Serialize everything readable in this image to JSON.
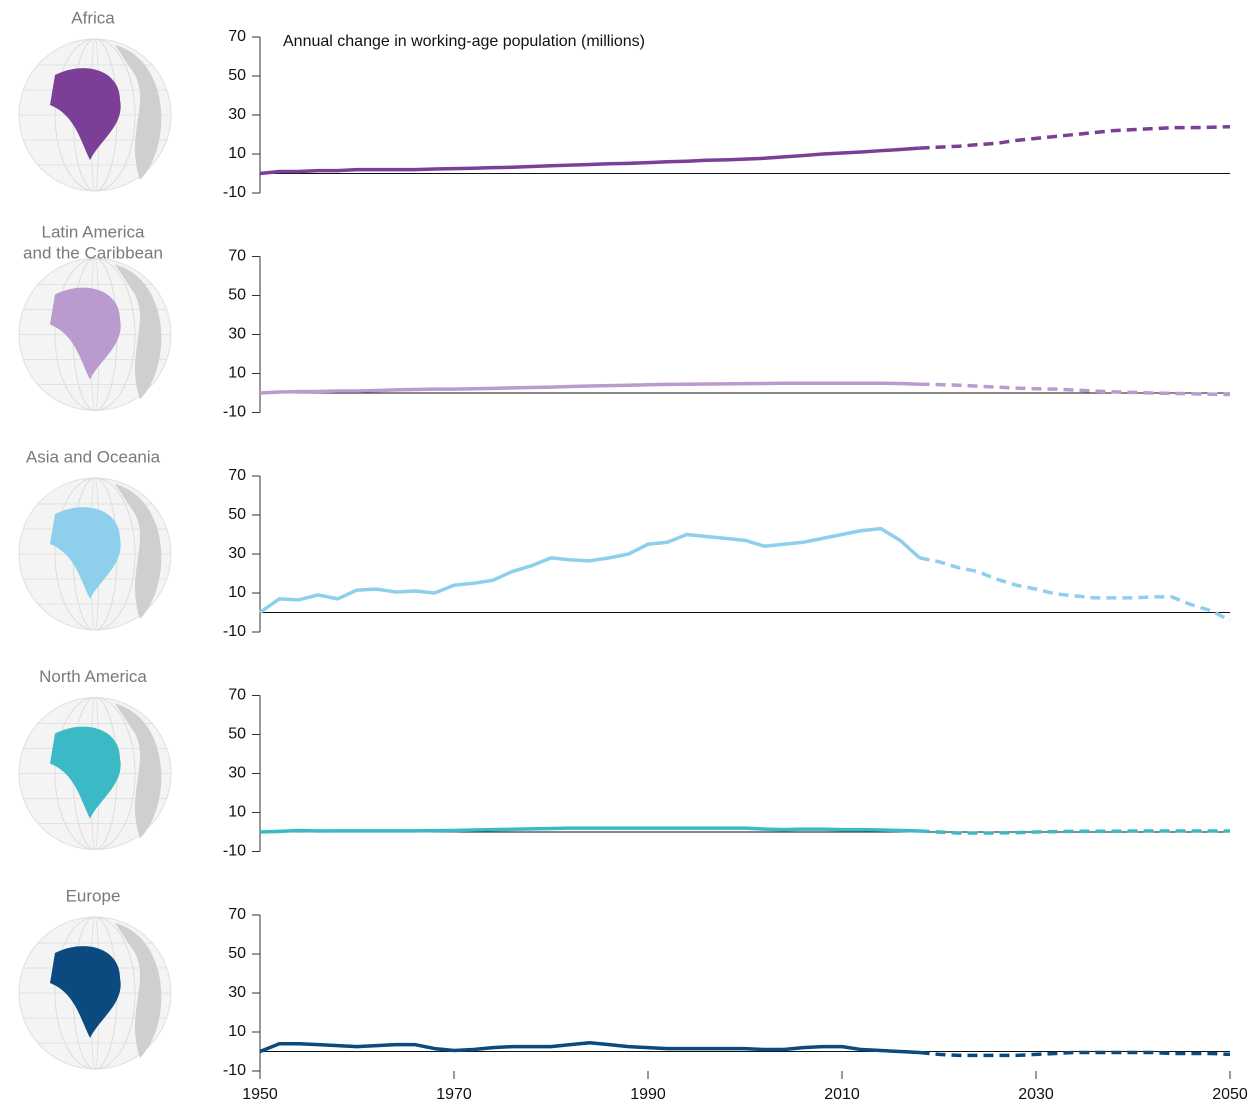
{
  "chart_data": [
    {
      "type": "line",
      "title": "Africa",
      "annotation": "Annual change in working-age population (millions)",
      "x": [
        1950,
        1952,
        1954,
        1956,
        1958,
        1960,
        1962,
        1964,
        1966,
        1968,
        1970,
        1972,
        1974,
        1976,
        1978,
        1980,
        1982,
        1984,
        1986,
        1988,
        1990,
        1992,
        1994,
        1996,
        1998,
        2000,
        2002,
        2004,
        2006,
        2008,
        2010,
        2012,
        2014,
        2016,
        2018,
        2020,
        2022,
        2024,
        2026,
        2028,
        2030,
        2032,
        2034,
        2036,
        2038,
        2040,
        2042,
        2044,
        2046,
        2048,
        2050
      ],
      "series": [
        {
          "color": "#7b3f98",
          "style": "solid",
          "values": [
            0,
            1,
            1,
            1.5,
            1.5,
            2,
            2,
            2,
            2,
            2.3,
            2.5,
            2.7,
            3,
            3.2,
            3.6,
            4,
            4.3,
            4.6,
            5,
            5.2,
            5.6,
            6,
            6.3,
            6.8,
            7,
            7.4,
            7.8,
            8.5,
            9.2,
            10,
            10.5,
            11,
            11.7,
            12.3,
            13,
            null,
            null,
            null,
            null,
            null,
            null,
            null,
            null,
            null,
            null,
            null,
            null,
            null,
            null,
            null,
            null
          ]
        },
        {
          "color": "#7b3f98",
          "style": "dashed",
          "values": [
            null,
            null,
            null,
            null,
            null,
            null,
            null,
            null,
            null,
            null,
            null,
            null,
            null,
            null,
            null,
            null,
            null,
            null,
            null,
            null,
            null,
            null,
            null,
            null,
            null,
            null,
            null,
            null,
            null,
            null,
            null,
            null,
            null,
            null,
            13,
            13.5,
            14,
            14.8,
            15.5,
            17,
            18,
            19,
            20,
            21,
            22,
            22.5,
            23,
            23.5,
            23.5,
            23.7,
            24
          ]
        }
      ],
      "xlim": [
        1950,
        2050
      ],
      "ylim": [
        -10,
        70
      ],
      "yticks": [
        -10,
        10,
        30,
        50,
        70
      ]
    },
    {
      "type": "line",
      "title": "Latin America\nand the Caribbean",
      "x": [
        1950,
        1952,
        1954,
        1956,
        1958,
        1960,
        1962,
        1964,
        1966,
        1968,
        1970,
        1972,
        1974,
        1976,
        1978,
        1980,
        1982,
        1984,
        1986,
        1988,
        1990,
        1992,
        1994,
        1996,
        1998,
        2000,
        2002,
        2004,
        2006,
        2008,
        2010,
        2012,
        2014,
        2016,
        2018,
        2020,
        2022,
        2024,
        2026,
        2028,
        2030,
        2032,
        2034,
        2036,
        2038,
        2040,
        2042,
        2044,
        2046,
        2048,
        2050
      ],
      "series": [
        {
          "color": "#b99bd0",
          "style": "solid",
          "values": [
            0,
            0.5,
            0.7,
            0.8,
            1,
            1,
            1.3,
            1.6,
            1.8,
            2,
            2,
            2.2,
            2.4,
            2.6,
            2.8,
            3,
            3.3,
            3.6,
            3.8,
            4,
            4.2,
            4.4,
            4.5,
            4.6,
            4.7,
            4.8,
            4.9,
            5,
            5,
            5,
            5,
            5,
            5,
            4.9,
            4.5,
            null,
            null,
            null,
            null,
            null,
            null,
            null,
            null,
            null,
            null,
            null,
            null,
            null,
            null,
            null,
            null
          ]
        },
        {
          "color": "#b99bd0",
          "style": "dashed",
          "values": [
            null,
            null,
            null,
            null,
            null,
            null,
            null,
            null,
            null,
            null,
            null,
            null,
            null,
            null,
            null,
            null,
            null,
            null,
            null,
            null,
            null,
            null,
            null,
            null,
            null,
            null,
            null,
            null,
            null,
            null,
            null,
            null,
            null,
            null,
            4.5,
            4.3,
            4,
            3.5,
            3,
            2.5,
            2.2,
            2,
            1.5,
            1,
            0.6,
            0.3,
            0,
            -0.2,
            -0.4,
            -0.6,
            -0.8
          ]
        }
      ],
      "xlim": [
        1950,
        2050
      ],
      "ylim": [
        -10,
        70
      ],
      "yticks": [
        -10,
        10,
        30,
        50,
        70
      ]
    },
    {
      "type": "line",
      "title": "Asia and Oceania",
      "x": [
        1950,
        1952,
        1954,
        1956,
        1958,
        1960,
        1962,
        1964,
        1966,
        1968,
        1970,
        1972,
        1974,
        1976,
        1978,
        1980,
        1982,
        1984,
        1986,
        1988,
        1990,
        1992,
        1994,
        1996,
        1998,
        2000,
        2002,
        2004,
        2006,
        2008,
        2010,
        2012,
        2014,
        2016,
        2018,
        2020,
        2022,
        2024,
        2026,
        2028,
        2030,
        2032,
        2034,
        2036,
        2038,
        2040,
        2042,
        2044,
        2046,
        2048,
        2050
      ],
      "series": [
        {
          "color": "#8ecfec",
          "style": "solid",
          "values": [
            0,
            7,
            6.5,
            9,
            7,
            11.5,
            12,
            10.5,
            11,
            10,
            14,
            15,
            16.5,
            21,
            24,
            28,
            27,
            26.5,
            28,
            30,
            35,
            36,
            40,
            39,
            38,
            37,
            34,
            35,
            36,
            38,
            40,
            42,
            43,
            37,
            28,
            null,
            null,
            null,
            null,
            null,
            null,
            null,
            null,
            null,
            null,
            null,
            null,
            null,
            null,
            null,
            null
          ]
        },
        {
          "color": "#8ecfec",
          "style": "dashed",
          "values": [
            null,
            null,
            null,
            null,
            null,
            null,
            null,
            null,
            null,
            null,
            null,
            null,
            null,
            null,
            null,
            null,
            null,
            null,
            null,
            null,
            null,
            null,
            null,
            null,
            null,
            null,
            null,
            null,
            null,
            null,
            null,
            null,
            null,
            null,
            28,
            26,
            23,
            21,
            17,
            14,
            12,
            9.5,
            8.5,
            7.5,
            7.5,
            7.5,
            8,
            8,
            4,
            1,
            -4
          ]
        }
      ],
      "xlim": [
        1950,
        2050
      ],
      "ylim": [
        -10,
        70
      ],
      "yticks": [
        -10,
        10,
        30,
        50,
        70
      ]
    },
    {
      "type": "line",
      "title": "North America",
      "x": [
        1950,
        1952,
        1954,
        1956,
        1958,
        1960,
        1962,
        1964,
        1966,
        1968,
        1970,
        1972,
        1974,
        1976,
        1978,
        1980,
        1982,
        1984,
        1986,
        1988,
        1990,
        1992,
        1994,
        1996,
        1998,
        2000,
        2002,
        2004,
        2006,
        2008,
        2010,
        2012,
        2014,
        2016,
        2018,
        2020,
        2022,
        2024,
        2026,
        2028,
        2030,
        2032,
        2034,
        2036,
        2038,
        2040,
        2042,
        2044,
        2046,
        2048,
        2050
      ],
      "series": [
        {
          "color": "#3bbac6",
          "style": "solid",
          "values": [
            0,
            0.3,
            0.8,
            0.5,
            0.6,
            0.6,
            0.6,
            0.6,
            0.6,
            0.7,
            0.8,
            1,
            1.2,
            1.4,
            1.6,
            1.8,
            2,
            2,
            2,
            2,
            2,
            2,
            2,
            2,
            2,
            2,
            1.5,
            1.2,
            1.5,
            1.5,
            1.2,
            1.2,
            1,
            0.8,
            0.5,
            null,
            null,
            null,
            null,
            null,
            null,
            null,
            null,
            null,
            null,
            null,
            null,
            null,
            null,
            null,
            null
          ]
        },
        {
          "color": "#3bbac6",
          "style": "dashed",
          "values": [
            null,
            null,
            null,
            null,
            null,
            null,
            null,
            null,
            null,
            null,
            null,
            null,
            null,
            null,
            null,
            null,
            null,
            null,
            null,
            null,
            null,
            null,
            null,
            null,
            null,
            null,
            null,
            null,
            null,
            null,
            null,
            null,
            null,
            null,
            0.5,
            0,
            -0.5,
            -0.5,
            -0.5,
            -0.3,
            0,
            0.2,
            0.3,
            0.4,
            0.4,
            0.5,
            0.5,
            0.5,
            0.5,
            0.5,
            0.5
          ]
        }
      ],
      "xlim": [
        1950,
        2050
      ],
      "ylim": [
        -10,
        70
      ],
      "yticks": [
        -10,
        10,
        30,
        50,
        70
      ]
    },
    {
      "type": "line",
      "title": "Europe",
      "x": [
        1950,
        1952,
        1954,
        1956,
        1958,
        1960,
        1962,
        1964,
        1966,
        1968,
        1970,
        1972,
        1974,
        1976,
        1978,
        1980,
        1982,
        1984,
        1986,
        1988,
        1990,
        1992,
        1994,
        1996,
        1998,
        2000,
        2002,
        2004,
        2006,
        2008,
        2010,
        2012,
        2014,
        2016,
        2018,
        2020,
        2022,
        2024,
        2026,
        2028,
        2030,
        2032,
        2034,
        2036,
        2038,
        2040,
        2042,
        2044,
        2046,
        2048,
        2050
      ],
      "series": [
        {
          "color": "#0a4a7f",
          "style": "solid",
          "values": [
            0,
            4,
            4,
            3.5,
            3,
            2.5,
            3,
            3.5,
            3.5,
            1.5,
            0.5,
            1,
            2,
            2.5,
            2.5,
            2.5,
            3.5,
            4.5,
            3.5,
            2.5,
            2,
            1.5,
            1.5,
            1.5,
            1.5,
            1.5,
            1,
            1,
            2,
            2.5,
            2.5,
            1,
            0.5,
            0,
            -0.5,
            null,
            null,
            null,
            null,
            null,
            null,
            null,
            null,
            null,
            null,
            null,
            null,
            null,
            null,
            null,
            null
          ]
        },
        {
          "color": "#0a4a7f",
          "style": "dashed",
          "values": [
            null,
            null,
            null,
            null,
            null,
            null,
            null,
            null,
            null,
            null,
            null,
            null,
            null,
            null,
            null,
            null,
            null,
            null,
            null,
            null,
            null,
            null,
            null,
            null,
            null,
            null,
            null,
            null,
            null,
            null,
            null,
            null,
            null,
            null,
            -0.5,
            -1.5,
            -2,
            -2,
            -2,
            -2,
            -1.5,
            -1,
            -0.5,
            -0.5,
            -0.5,
            -0.5,
            -0.5,
            -1,
            -1,
            -1,
            -1.5
          ]
        }
      ],
      "xlim": [
        1950,
        2050
      ],
      "ylim": [
        -10,
        70
      ],
      "yticks": [
        -10,
        10,
        30,
        50,
        70
      ],
      "xticks": [
        1950,
        1970,
        1990,
        2010,
        2030,
        2050
      ]
    }
  ]
}
